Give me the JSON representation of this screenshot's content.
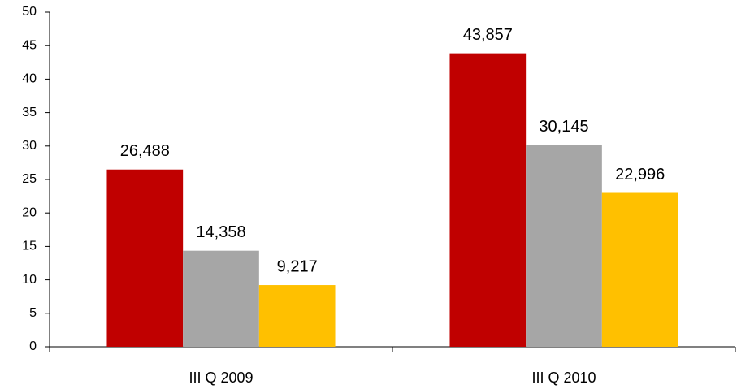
{
  "chart_data": {
    "type": "bar",
    "categories": [
      "III Q 2009",
      "III Q 2010"
    ],
    "series": [
      {
        "color": "#c00000",
        "values": [
          26.488,
          43.857
        ],
        "value_labels": [
          "26,488",
          "43,857"
        ]
      },
      {
        "color": "#a6a6a6",
        "values": [
          14.358,
          30.145
        ],
        "value_labels": [
          "14,358",
          "30,145"
        ]
      },
      {
        "color": "#ffc000",
        "values": [
          9.217,
          22.996
        ],
        "value_labels": [
          "9,217",
          "22,996"
        ]
      }
    ],
    "ylim": [
      0,
      50
    ],
    "yticks": [
      0,
      5,
      10,
      15,
      20,
      25,
      30,
      35,
      40,
      45,
      50
    ],
    "grid": false
  }
}
